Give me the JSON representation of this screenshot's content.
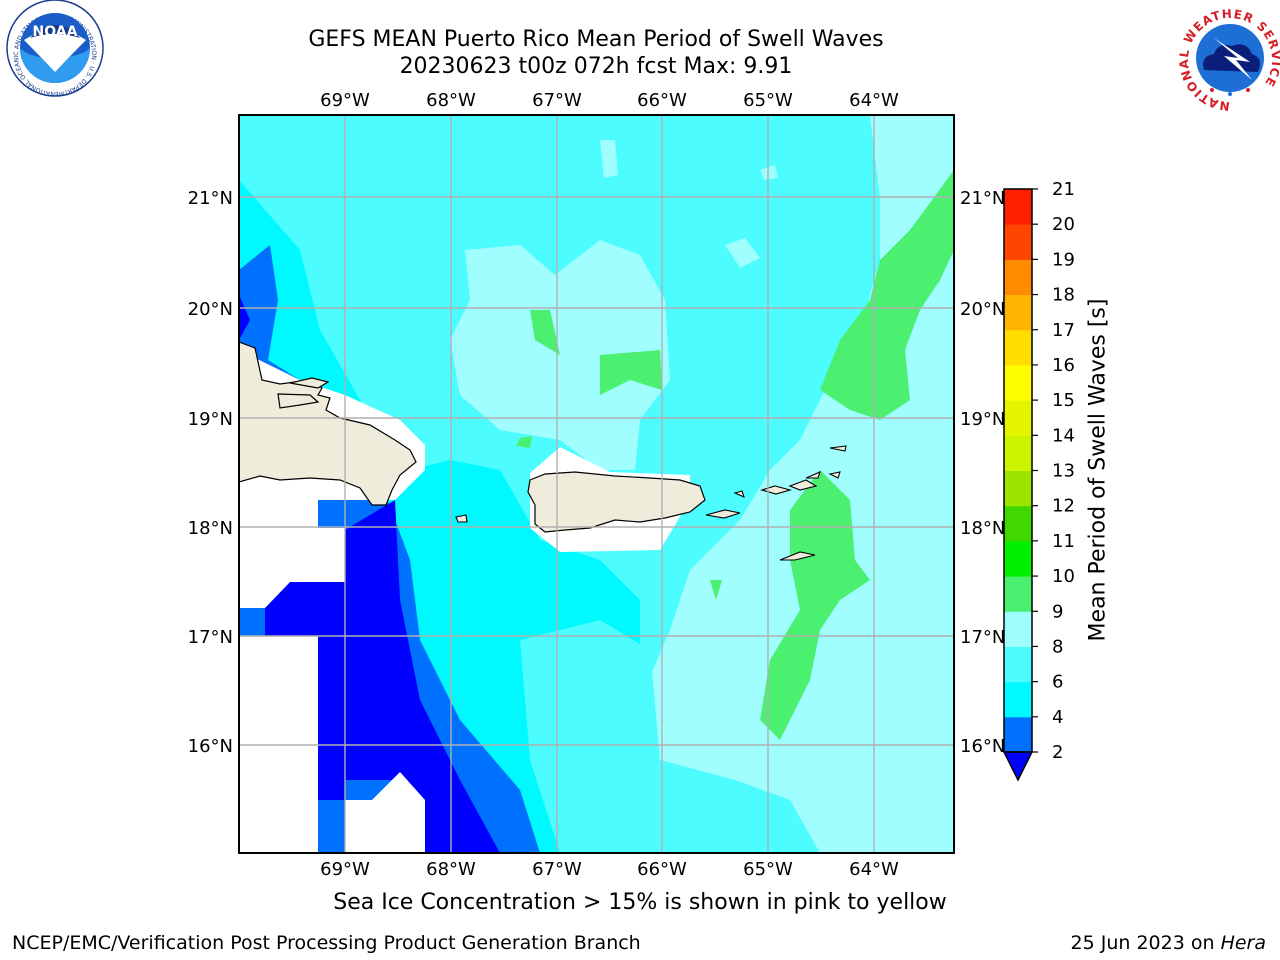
{
  "title": {
    "line1": "GEFS MEAN Puerto Rico Mean Period of Swell Waves",
    "line2": "20230623 t00z 072h fcst   Max: 9.91"
  },
  "lon_labels": [
    "69°W",
    "68°W",
    "67°W",
    "66°W",
    "65°W",
    "64°W"
  ],
  "lat_labels": [
    "21°N",
    "20°N",
    "19°N",
    "18°N",
    "17°N",
    "16°N"
  ],
  "colorbar": {
    "title": "Mean Period of Swell Waves [s]",
    "levels": [
      "2",
      "4",
      "6",
      "8",
      "9",
      "10",
      "11",
      "12",
      "13",
      "14",
      "15",
      "16",
      "17",
      "18",
      "19",
      "20",
      "21"
    ],
    "colors": [
      "#0000ff",
      "#0070ff",
      "#00f8ff",
      "#4cfcff",
      "#a0feff",
      "#4cf070",
      "#00f000",
      "#40d800",
      "#9de500",
      "#cbf400",
      "#e6f400",
      "#ffff00",
      "#ffde00",
      "#ffb400",
      "#ff8c00",
      "#ff4600",
      "#ff2000",
      "#ff0000"
    ],
    "under_color": "#0000ff"
  },
  "caption": "Sea Ice Concentration > 15% is shown in pink to yellow",
  "footer": {
    "left": "NCEP/EMC/Verification Post Processing Product Generation Branch",
    "right_prefix": "25 Jun 2023 on ",
    "right_host": "Hera"
  },
  "logos": {
    "noaa_text": "NOAA",
    "noaa_ring": "NATIONAL OCEANIC AND ATMOSPHERIC ADMINISTRATION · U.S. DEPARTMENT OF COMMERCE ·",
    "nws_ring": "NATIONAL WEATHER SERVICE"
  },
  "palette": {
    "land": "#efecdc",
    "bg": "#4cfcff",
    "cyan": "#00f8ff",
    "light": "#a0feff",
    "green": "#4cf070",
    "mid_blue": "#0070ff",
    "blue": "#0000ff",
    "grid": "#b0b0b0"
  }
}
